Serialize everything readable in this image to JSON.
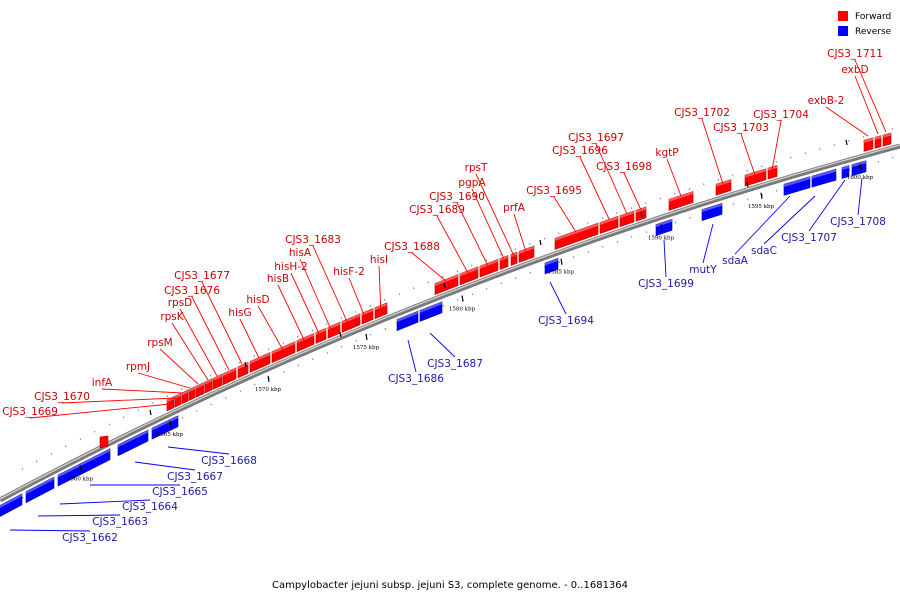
{
  "caption": "Campylobacter jejuni subsp. jejuni S3, complete genome. - 0..1681364",
  "legend": [
    {
      "label": "Forward",
      "color": "#ff0000"
    },
    {
      "label": "Reverse",
      "color": "#0000ff"
    }
  ],
  "colors": {
    "forward": "#ff0000",
    "reverse": "#0000ff",
    "forward_label": "#cc0000",
    "reverse_label": "#1a1aa6",
    "arc": "#999999"
  },
  "ticks": [
    "1560 kbp",
    "1565 kbp",
    "1570 kbp",
    "1575 kbp",
    "1580 kbp",
    "1585 kbp",
    "1590 kbp",
    "1595 kbp",
    "1600 kbp"
  ],
  "forward_labels": [
    "CJS3_1669",
    "CJS3_1670",
    "infA",
    "rpmJ",
    "rpsM",
    "rpsK",
    "rpsD",
    "CJS3_1676",
    "CJS3_1677",
    "hisG",
    "hisD",
    "hisB",
    "hisH-2",
    "hisA",
    "CJS3_1683",
    "hisF-2",
    "hisI",
    "CJS3_1688",
    "CJS3_1689",
    "CJS3_1690",
    "pgpA",
    "rpsT",
    "prfA",
    "CJS3_1695",
    "CJS3_1696",
    "CJS3_1697",
    "CJS3_1698",
    "kgtP",
    "CJS3_1702",
    "CJS3_1703",
    "CJS3_1704",
    "exbB-2",
    "exbD",
    "CJS3_1711"
  ],
  "reverse_labels": [
    "CJS3_1662",
    "CJS3_1663",
    "CJS3_1664",
    "CJS3_1665",
    "CJS3_1667",
    "CJS3_1668",
    "CJS3_1686",
    "CJS3_1687",
    "CJS3_1694",
    "CJS3_1699",
    "mutY",
    "sdaA",
    "sdaC",
    "CJS3_1707",
    "CJS3_1708"
  ]
}
